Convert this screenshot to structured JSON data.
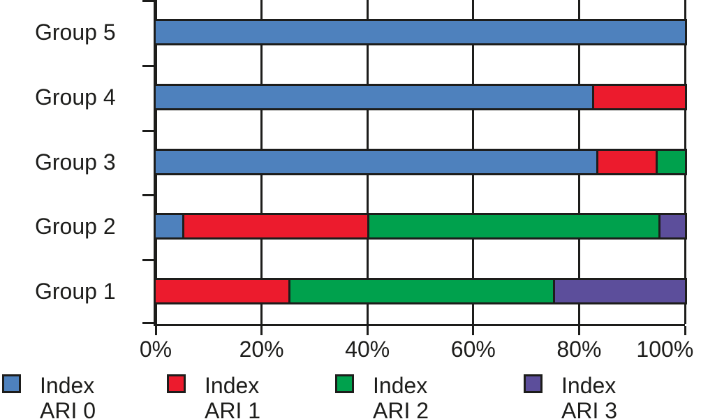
{
  "chart_data": {
    "type": "bar",
    "orientation": "horizontal",
    "stacked": true,
    "value_unit": "percent",
    "title": "",
    "xlabel": "",
    "ylabel": "",
    "grid": true,
    "legend_position": "bottom",
    "ink_color": "#1D1D1B",
    "x_axis": {
      "range": [
        0,
        100
      ],
      "tick_labels": [
        "0%",
        "20%",
        "40%",
        "60%",
        "80%",
        "100%"
      ]
    },
    "series": [
      {
        "name": "Index ARI 0",
        "color": "#4E81BD"
      },
      {
        "name": "Index ARI 1",
        "color": "#EC1B2D"
      },
      {
        "name": "Index ARI 2",
        "color": "#00A14D"
      },
      {
        "name": "Index ARI 3",
        "color": "#5C4E9B"
      }
    ],
    "rows_top_to_bottom": [
      {
        "label": "Group 5",
        "segments": [
          {
            "series": "Index ARI 0",
            "value": 100
          }
        ]
      },
      {
        "label": "Group 4",
        "segments": [
          {
            "series": "Index ARI 0",
            "value": 82.4
          },
          {
            "series": "Index ARI 1",
            "value": 17.6
          }
        ]
      },
      {
        "label": "Group 3",
        "segments": [
          {
            "series": "Index ARI 0",
            "value": 83.3
          },
          {
            "series": "Index ARI 1",
            "value": 11.1
          },
          {
            "series": "Index ARI 2",
            "value": 5.6
          }
        ]
      },
      {
        "label": "Group 2",
        "segments": [
          {
            "series": "Index ARI 0",
            "value": 5
          },
          {
            "series": "Index ARI 1",
            "value": 35
          },
          {
            "series": "Index ARI 2",
            "value": 55
          },
          {
            "series": "Index ARI 3",
            "value": 5
          }
        ]
      },
      {
        "label": "Group 1",
        "segments": [
          {
            "series": "Index ARI 1",
            "value": 25
          },
          {
            "series": "Index ARI 2",
            "value": 50
          },
          {
            "series": "Index ARI 3",
            "value": 25
          }
        ]
      }
    ],
    "legend": [
      {
        "line1": "Index",
        "line2": "ARI 0",
        "series": "Index ARI 0"
      },
      {
        "line1": "Index",
        "line2": "ARI 1",
        "series": "Index ARI 1"
      },
      {
        "line1": "Index",
        "line2": "ARI 2",
        "series": "Index ARI 2"
      },
      {
        "line1": "Index",
        "line2": "ARI 3",
        "series": "Index ARI 3"
      }
    ]
  }
}
